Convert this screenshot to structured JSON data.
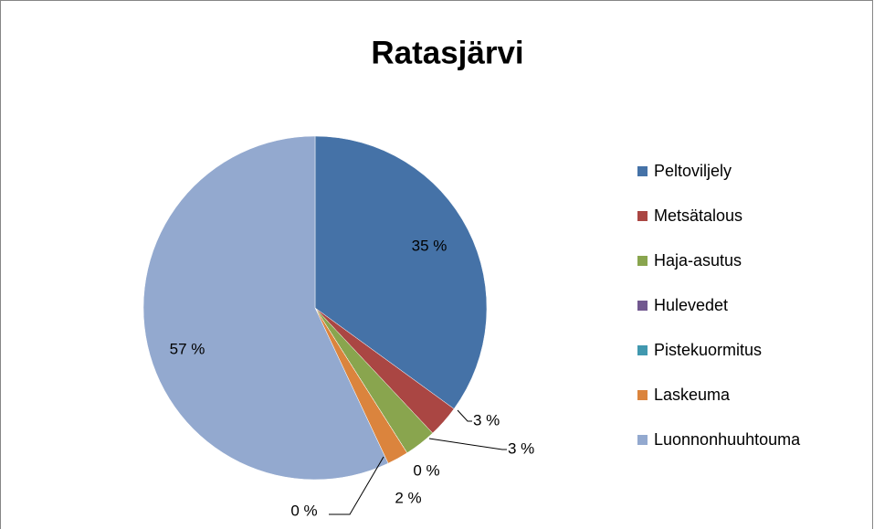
{
  "chart_data": {
    "type": "pie",
    "title": "Ratasjärvi",
    "categories": [
      "Peltoviljely",
      "Metsätalous",
      "Haja-asutus",
      "Hulevedet",
      "Pistekuormitus",
      "Laskeuma",
      "Luonnonhuuhtouma"
    ],
    "values": [
      35,
      3,
      3,
      0,
      0,
      2,
      57
    ],
    "value_labels": [
      "35 %",
      "3 %",
      "3 %",
      "0 %",
      "0 %",
      "2 %",
      "57 %"
    ],
    "colors": [
      "#4572a7",
      "#aa4643",
      "#89a54e",
      "#71588f",
      "#4198af",
      "#db843d",
      "#93a9cf"
    ],
    "legend": "right"
  }
}
